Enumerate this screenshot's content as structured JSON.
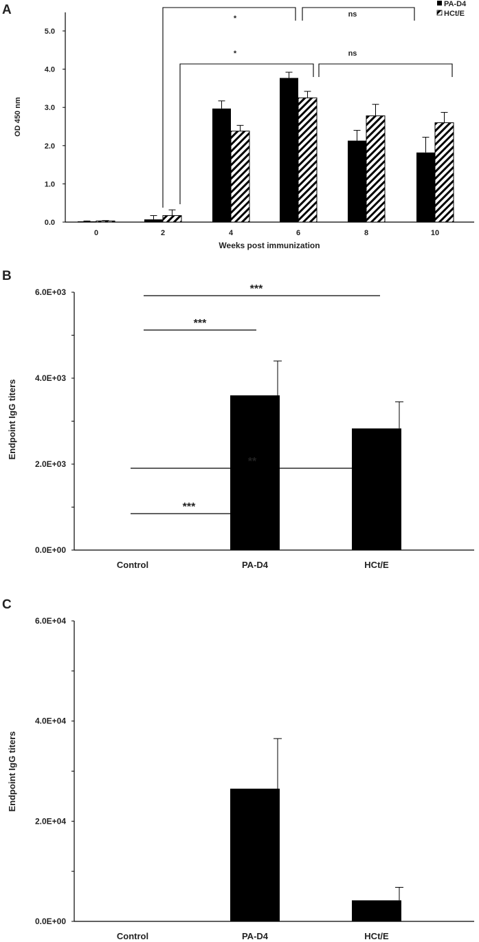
{
  "colors": {
    "bar": "#000000",
    "hatch_fill": "#ffffff",
    "axis": "#000000"
  },
  "chart_data": [
    {
      "panel_label": "A",
      "type": "bar",
      "xlabel": "Weeks post immunization",
      "ylabel": "OD 450 nm",
      "categories": [
        "0",
        "2",
        "4",
        "6",
        "8",
        "10"
      ],
      "ylim": [
        0,
        5
      ],
      "yticks": [
        "0.0",
        "1.0",
        "2.0",
        "3.0",
        "4.0",
        "5.0"
      ],
      "legend_position": "top-right",
      "series": [
        {
          "name": "PA-D4",
          "pattern": "solid",
          "values": [
            0.02,
            0.07,
            2.97,
            3.77,
            2.13,
            1.82
          ],
          "errors": [
            0.01,
            0.1,
            0.2,
            0.15,
            0.27,
            0.4
          ]
        },
        {
          "name": "HCt/E",
          "pattern": "hatched",
          "values": [
            0.03,
            0.17,
            2.38,
            3.25,
            2.78,
            2.6
          ],
          "errors": [
            0.01,
            0.15,
            0.15,
            0.17,
            0.3,
            0.27
          ]
        }
      ],
      "significance": [
        {
          "label": "*",
          "from": "2",
          "to": "6",
          "series": "PA-D4"
        },
        {
          "label": "*",
          "from": "2",
          "to": "6",
          "series": "HCt/E"
        },
        {
          "label": "ns",
          "from": "6",
          "to": "10",
          "series": "PA-D4"
        },
        {
          "label": "ns",
          "from": "6",
          "to": "10",
          "series": "HCt/E"
        }
      ]
    },
    {
      "panel_label": "B",
      "type": "bar",
      "xlabel": "",
      "ylabel": "Endpoint IgG titers",
      "categories": [
        "Control",
        "PA-D4",
        "HCt/E"
      ],
      "values": [
        0,
        3600,
        2830
      ],
      "errors": [
        0,
        800,
        620
      ],
      "ylim": [
        0,
        6000
      ],
      "yticks": [
        "0.0E+00",
        "2.0E+03",
        "4.0E+03",
        "6.0E+03"
      ],
      "significance": [
        {
          "label": "***",
          "from": "Control",
          "to": "PA-D4"
        },
        {
          "label": "***",
          "from": "Control",
          "to": "HCt/E"
        }
      ]
    },
    {
      "panel_label": "C",
      "type": "bar",
      "xlabel": "",
      "ylabel": "Endpoint IgG titers",
      "categories": [
        "Control",
        "PA-D4",
        "HCt/E"
      ],
      "values": [
        0,
        26500,
        4200
      ],
      "errors": [
        0,
        10000,
        2600
      ],
      "ylim": [
        0,
        60000
      ],
      "yticks": [
        "0.0E+00",
        "2.0E+04",
        "4.0E+04",
        "6.0E+04"
      ],
      "significance": [
        {
          "label": "***",
          "from": "Control",
          "to": "PA-D4"
        },
        {
          "label": "**",
          "from": "Control",
          "to": "HCt/E"
        }
      ]
    }
  ]
}
